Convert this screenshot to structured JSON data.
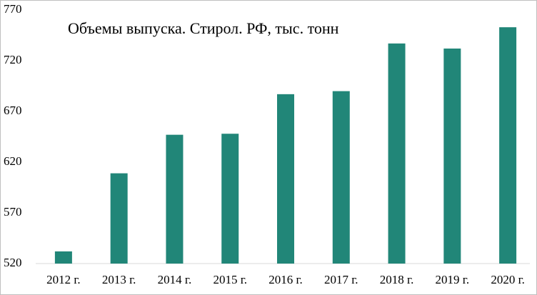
{
  "chart_data": {
    "type": "bar",
    "title": "Объемы выпуска. Стирол.  РФ, тыс. тонн",
    "categories": [
      "2012 г.",
      "2013 г.",
      "2014 г.",
      "2015 г.",
      "2016 г.",
      "2017 г.",
      "2018 г.",
      "2019 г.",
      "2020 г."
    ],
    "values": [
      532,
      609,
      647,
      648,
      687,
      690,
      737,
      732,
      753
    ],
    "color": "#218678",
    "ylim": [
      520,
      770
    ],
    "yticks": [
      520,
      570,
      620,
      670,
      720,
      770
    ],
    "grid": false
  }
}
